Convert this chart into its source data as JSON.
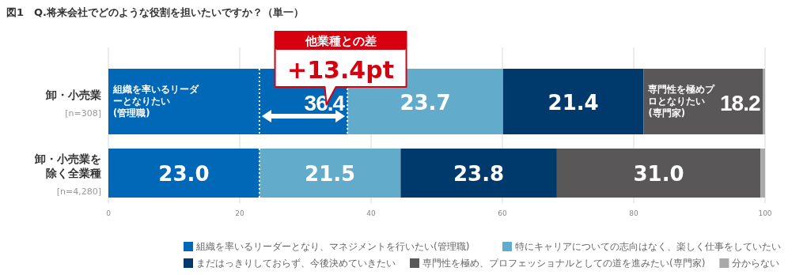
{
  "chart_data": {
    "type": "bar",
    "orientation": "horizontal",
    "stacked": true,
    "title": "図1　Q.将来会社でどのような役割を担いたいですか？（単一）",
    "categories": [
      "卸・小売業\n[n=308]",
      "卸・小売業を除く全業種\n[n=4,280]"
    ],
    "series": [
      {
        "name": "組織を率いるリーダーとなり、マネジメントを行いたい(管理職)",
        "color": "#0068b7",
        "values": [
          36.4,
          23.0
        ],
        "value_labels": [
          "36.4",
          "23.0"
        ]
      },
      {
        "name": "特にキャリアについての志向はなく、楽しく仕事をしていたい",
        "color": "#63abcb",
        "values": [
          23.7,
          21.5
        ],
        "value_labels": [
          "23.7",
          "21.5"
        ]
      },
      {
        "name": "まだはっきりしておらず、今後決めていきたい",
        "color": "#003a6c",
        "values": [
          21.4,
          23.8
        ],
        "value_labels": [
          "21.4",
          "23.8"
        ]
      },
      {
        "name": "専門性を極め、プロフェッショナルとしての道を進みたい(専門家)",
        "color": "#595757",
        "values": [
          18.2,
          31.0
        ],
        "value_labels": [
          "18.2",
          "31.0"
        ]
      },
      {
        "name": "分からない",
        "color": "#a9a9a9",
        "values": [
          0.3,
          0.7
        ],
        "value_labels": [
          null,
          null
        ]
      }
    ],
    "xlim": [
      0,
      100
    ],
    "xticks": [
      0,
      20,
      40,
      60,
      80,
      100
    ],
    "grid": "x",
    "legend": "bottom",
    "ref_lines": [
      {
        "axis": "x",
        "value": 23.0,
        "color": "#ffffff",
        "line_style": "dotted"
      },
      {
        "axis": "x",
        "value": 36.4,
        "color": "#ffffff",
        "line_style": "dotted"
      }
    ],
    "annotations": [
      {
        "text": "組織を率いるリーダーとなりたい(管理職)",
        "x": 0,
        "y": "卸・小売業\n[n=308]"
      },
      {
        "text": "専門性を極めプロとなりたい(専門家)",
        "x": 81.5,
        "y": "卸・小売業\n[n=308]"
      },
      "他業種との差",
      {
        "text": "+13.4pt",
        "x": 33.2,
        "y": "卸・小売業\n[n=308]"
      }
    ]
  }
}
